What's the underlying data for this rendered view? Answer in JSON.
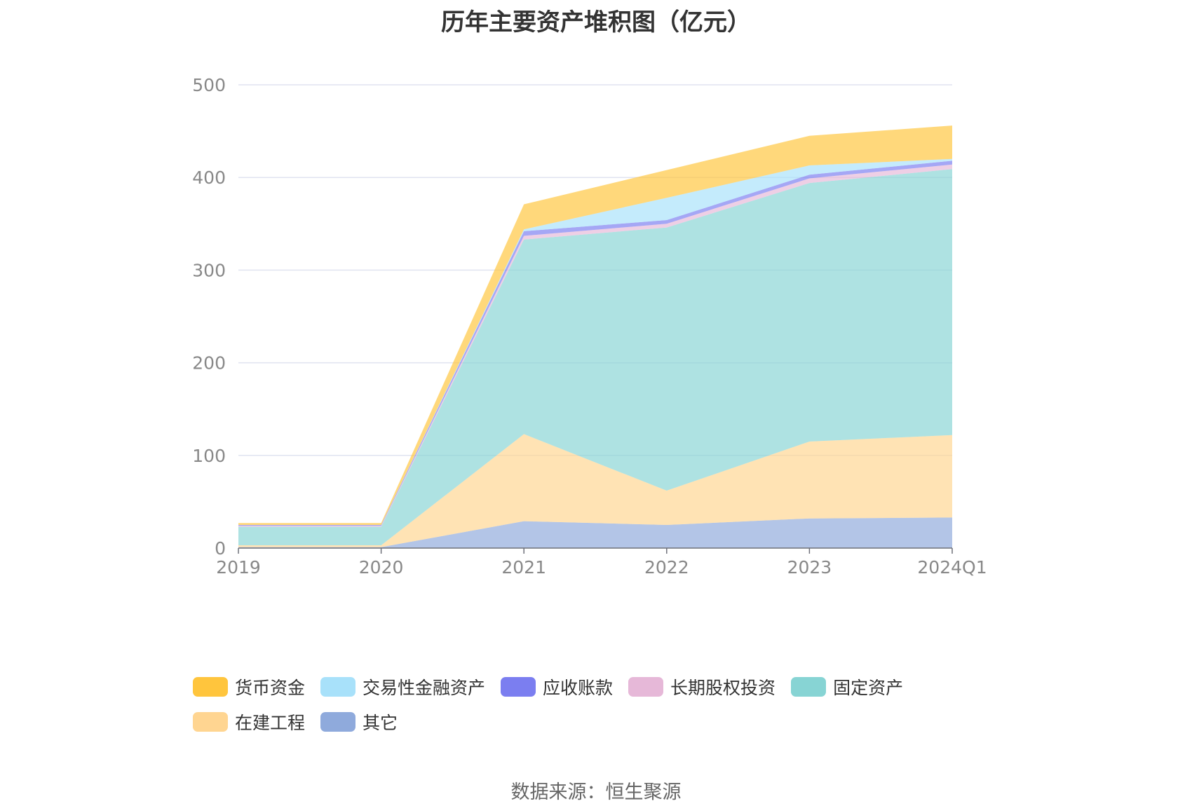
{
  "source": "数据来源：恒生聚源",
  "chart_data": {
    "type": "area",
    "stacked": true,
    "title": "历年主要资产堆积图（亿元）",
    "categories": [
      "2019",
      "2020",
      "2021",
      "2022",
      "2023",
      "2024Q1"
    ],
    "ylim": [
      0,
      500
    ],
    "yticks": [
      0,
      100,
      200,
      300,
      400,
      500
    ],
    "grid": true,
    "legend_position": "bottom",
    "series": [
      {
        "name": "其它",
        "color": "#8faadc",
        "values": [
          1,
          1,
          29,
          25,
          32,
          33
        ]
      },
      {
        "name": "在建工程",
        "color": "#ffd591",
        "values": [
          2,
          2,
          94,
          37,
          83,
          89
        ]
      },
      {
        "name": "固定资产",
        "color": "#87d4d4",
        "values": [
          20,
          20,
          210,
          284,
          279,
          287
        ]
      },
      {
        "name": "长期股权投资",
        "color": "#e6b8d8",
        "values": [
          1,
          1,
          4,
          4,
          5,
          5
        ]
      },
      {
        "name": "应收账款",
        "color": "#7b7ef0",
        "values": [
          1,
          1,
          5,
          4,
          4,
          4
        ]
      },
      {
        "name": "交易性金融资产",
        "color": "#a8e1fa",
        "values": [
          0,
          0,
          2,
          24,
          10,
          2
        ]
      },
      {
        "name": "货币资金",
        "color": "#ffc53d",
        "values": [
          2,
          2,
          27,
          30,
          32,
          36
        ]
      }
    ]
  },
  "legend_order": [
    {
      "name": "货币资金",
      "color": "#ffc53d"
    },
    {
      "name": "交易性金融资产",
      "color": "#a8e1fa"
    },
    {
      "name": "应收账款",
      "color": "#7b7ef0"
    },
    {
      "name": "长期股权投资",
      "color": "#e6b8d8"
    },
    {
      "name": "固定资产",
      "color": "#87d4d4"
    },
    {
      "name": "在建工程",
      "color": "#ffd591"
    },
    {
      "name": "其它",
      "color": "#8faadc"
    }
  ]
}
